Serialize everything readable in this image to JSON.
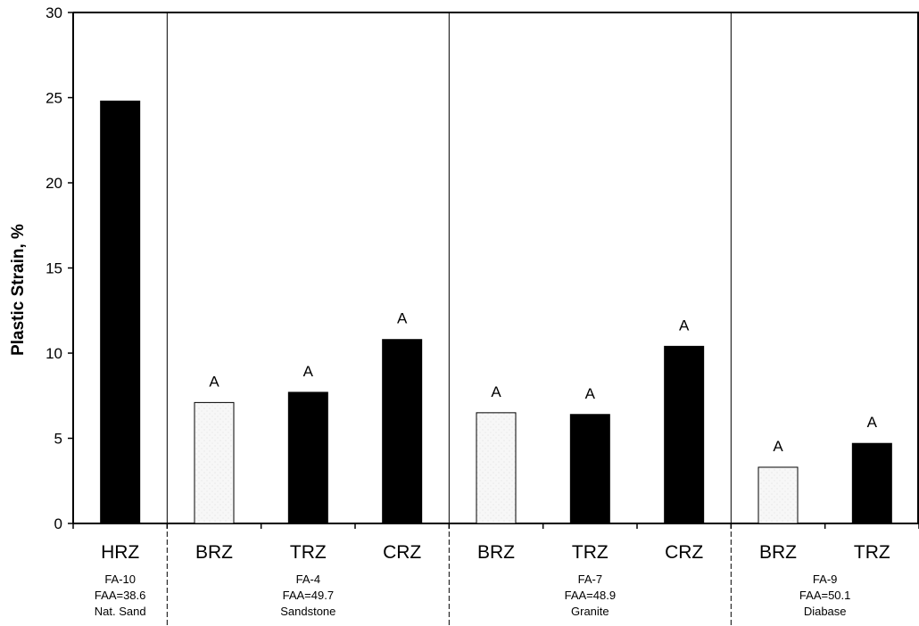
{
  "chart_data": {
    "type": "bar",
    "ylabel": "Plastic Strain, %",
    "ylim": [
      0,
      30
    ],
    "yticks": [
      0,
      5,
      10,
      15,
      20,
      25,
      30
    ],
    "grid": false,
    "legend": "none",
    "categories": [
      "HRZ",
      "BRZ",
      "TRZ",
      "CRZ",
      "BRZ",
      "TRZ",
      "CRZ",
      "BRZ",
      "TRZ"
    ],
    "values": [
      24.8,
      7.1,
      7.7,
      10.8,
      6.5,
      6.4,
      10.4,
      3.3,
      4.7
    ],
    "bar_labels": [
      "",
      "A",
      "A",
      "A",
      "A",
      "A",
      "A",
      "A",
      "A"
    ],
    "bar_fill": [
      "solid",
      "light",
      "solid",
      "solid",
      "light",
      "solid",
      "solid",
      "light",
      "solid"
    ],
    "groups": [
      {
        "lines": [
          "FA-10",
          "FAA=38.6",
          "Nat. Sand"
        ],
        "span": [
          0,
          0
        ]
      },
      {
        "lines": [
          "FA-4",
          "FAA=49.7",
          "Sandstone"
        ],
        "span": [
          1,
          3
        ]
      },
      {
        "lines": [
          "FA-7",
          "FAA=48.9",
          "Granite"
        ],
        "span": [
          4,
          6
        ]
      },
      {
        "lines": [
          "FA-9",
          "FAA=50.1",
          "Diabase"
        ],
        "span": [
          7,
          8
        ]
      }
    ],
    "colors": {
      "solid": "#000000",
      "light": "#f7f7f7",
      "axis": "#000000"
    }
  }
}
